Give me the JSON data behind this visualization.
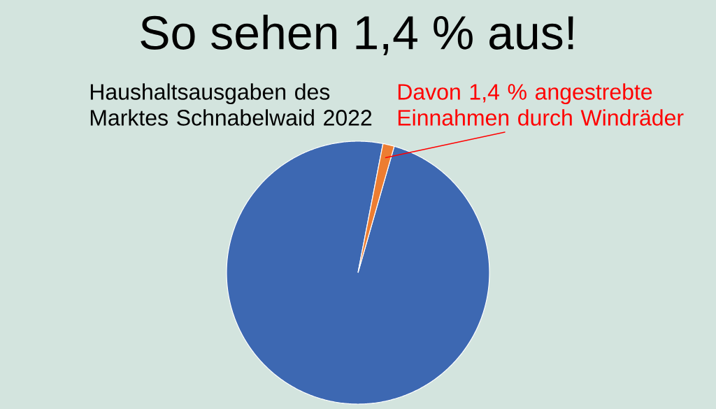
{
  "chart_data": {
    "type": "pie",
    "title": "So sehen 1,4 % aus!",
    "categories": [
      "Haushaltsausgaben des Marktes Schnabelwaid 2022",
      "Davon 1,4 % angestrebte Einnahmen durch Windräder"
    ],
    "values": [
      98.6,
      1.4
    ],
    "colors": [
      "#3d68b2",
      "#ed7d31"
    ]
  }
}
